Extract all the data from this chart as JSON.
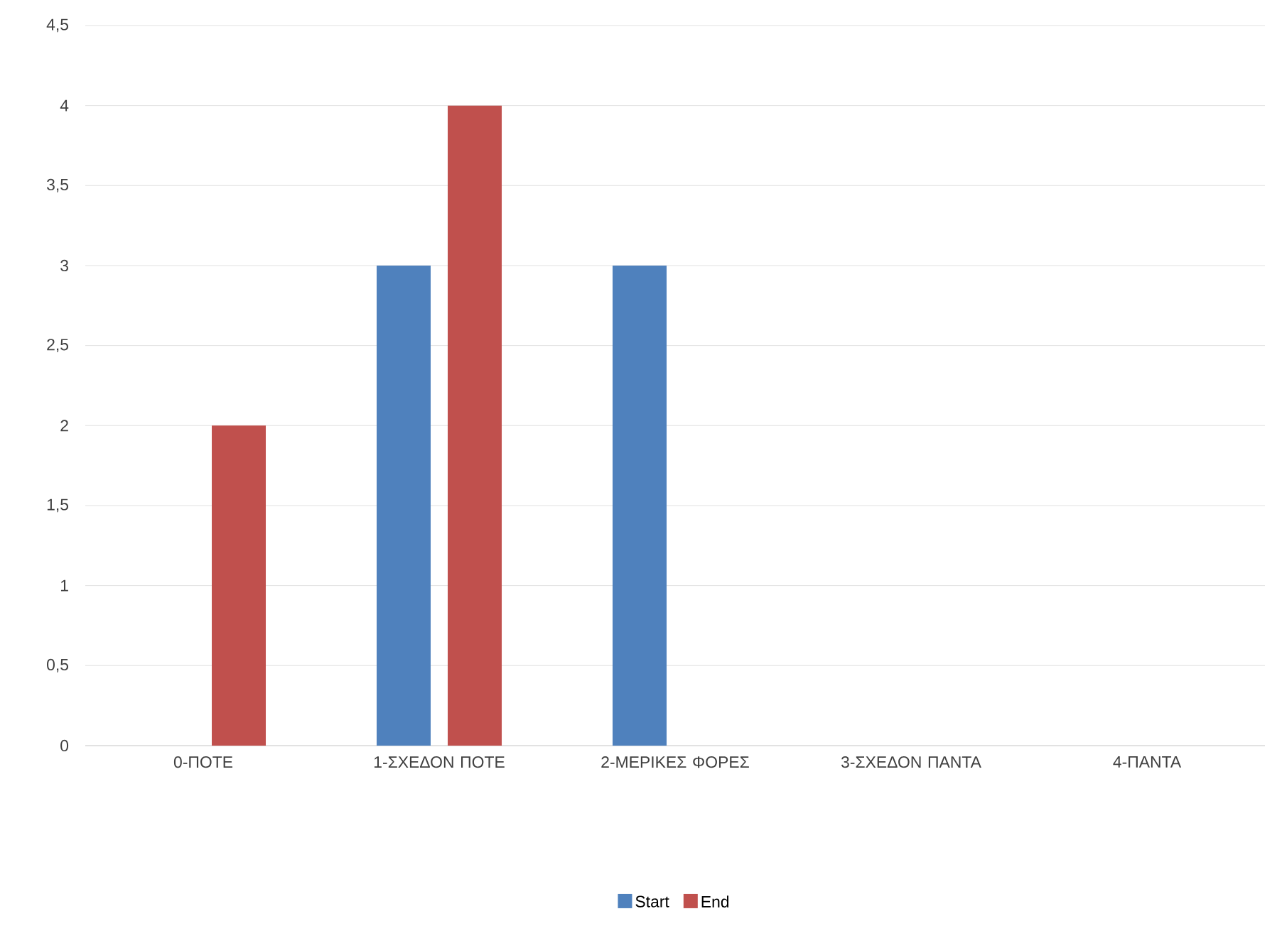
{
  "chart_data": {
    "type": "bar",
    "categories": [
      "0-ΠΟΤΕ",
      "1-ΣΧΕΔΟΝ ΠΟΤΕ",
      "2-ΜΕΡΙΚΕΣ ΦΟΡΕΣ",
      "3-ΣΧΕΔΟΝ ΠΑΝΤΑ",
      "4-ΠΑΝΤΑ"
    ],
    "series": [
      {
        "name": "Start",
        "color": "#4f81bd",
        "values": [
          0,
          3,
          3,
          0,
          0
        ]
      },
      {
        "name": "End",
        "color": "#c0504d",
        "values": [
          2,
          4,
          0,
          0,
          0
        ]
      }
    ],
    "ylim": [
      0,
      4.5
    ],
    "yticks": [
      0,
      {
        "value": 0.5,
        "label": "0,5"
      },
      1,
      {
        "value": 1.5,
        "label": "1,5"
      },
      2,
      {
        "value": 2.5,
        "label": "2,5"
      },
      3,
      {
        "value": 3.5,
        "label": "3,5"
      },
      4,
      {
        "value": 4.5,
        "label": "4,5"
      }
    ],
    "grid": "y",
    "legend": "bottom"
  }
}
